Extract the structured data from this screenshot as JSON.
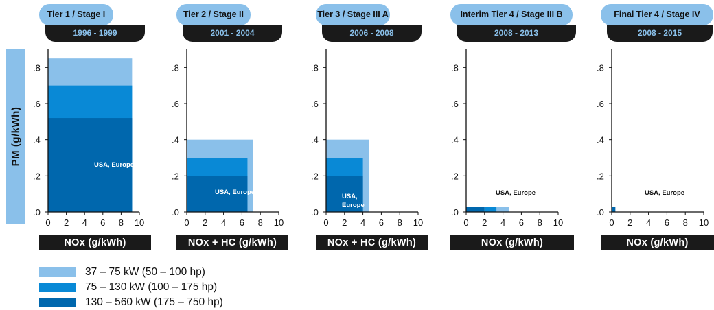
{
  "y_axis_label": "PM (g/kWh)",
  "colors": {
    "light": "#8ac0ea",
    "mid": "#0989d6",
    "dark": "#0067ad",
    "bar": "#1a1a1a"
  },
  "legend": [
    {
      "label": "37 – 75 kW  (50 – 100 hp)",
      "color": "#8ac0ea"
    },
    {
      "label": "75 – 130 kW  (100 – 175 hp)",
      "color": "#0989d6"
    },
    {
      "label": "130 – 560 kW  (175 – 750 hp)",
      "color": "#0067ad"
    }
  ],
  "chart_data": [
    {
      "type": "area",
      "tier": "Tier 1 / Stage I",
      "years": "1996 - 1999",
      "xlabel": "NOx (g/kWh)",
      "region_label": "USA, Europe",
      "xlim": [
        0,
        10
      ],
      "ylim": [
        0,
        0.9
      ],
      "xticks": [
        "0",
        "2",
        "4",
        "6",
        "8",
        "10"
      ],
      "yticks": [
        ".0",
        ".2",
        ".4",
        ".6",
        ".8"
      ],
      "regions": [
        {
          "series": "37 – 75 kW",
          "nox_max": 9.2,
          "pm_max": 0.85
        },
        {
          "series": "75 – 130 kW",
          "nox_max": 9.2,
          "pm_max": 0.7
        },
        {
          "series": "130 – 560 kW",
          "nox_max": 9.2,
          "pm_max": 0.52
        }
      ]
    },
    {
      "type": "area",
      "tier": "Tier 2 / Stage II",
      "years": "2001 - 2004",
      "xlabel": "NOx + HC (g/kWh)",
      "region_label": "USA, Europe",
      "xlim": [
        0,
        10
      ],
      "ylim": [
        0,
        0.9
      ],
      "xticks": [
        "0",
        "2",
        "4",
        "6",
        "8",
        "10"
      ],
      "yticks": [
        ".0",
        ".2",
        ".4",
        ".6",
        ".8"
      ],
      "regions": [
        {
          "series": "37 – 75 kW",
          "nox_max": 7.2,
          "pm_max": 0.4
        },
        {
          "series": "75 – 130 kW",
          "nox_max": 6.6,
          "pm_max": 0.3
        },
        {
          "series": "130 – 560 kW",
          "nox_max": 6.6,
          "pm_max": 0.2
        }
      ]
    },
    {
      "type": "area",
      "tier": "Tier 3 / Stage III A",
      "years": "2006 - 2008",
      "xlabel": "NOx + HC (g/kWh)",
      "region_label": "USA, Europe",
      "xlim": [
        0,
        10
      ],
      "ylim": [
        0,
        0.9
      ],
      "xticks": [
        "0",
        "2",
        "4",
        "6",
        "8",
        "10"
      ],
      "yticks": [
        ".0",
        ".2",
        ".4",
        ".6",
        ".8"
      ],
      "regions": [
        {
          "series": "37 – 75 kW",
          "nox_max": 4.7,
          "pm_max": 0.4
        },
        {
          "series": "75 – 130 kW",
          "nox_max": 4.0,
          "pm_max": 0.3
        },
        {
          "series": "130 – 560 kW",
          "nox_max": 4.0,
          "pm_max": 0.2
        }
      ]
    },
    {
      "type": "area",
      "tier": "Interim Tier 4 / Stage III B",
      "years": "2008 - 2013",
      "xlabel": "NOx (g/kWh)",
      "region_label": "USA, Europe",
      "xlim": [
        0,
        10
      ],
      "ylim": [
        0,
        0.9
      ],
      "xticks": [
        "0",
        "2",
        "4",
        "6",
        "8",
        "10"
      ],
      "yticks": [
        ".0",
        ".2",
        ".4",
        ".6",
        ".8"
      ],
      "regions": [
        {
          "series": "37 – 75 kW",
          "nox_min": 3.3,
          "nox_max": 4.7,
          "pm_max": 0.025
        },
        {
          "series": "75 – 130 kW",
          "nox_min": 2.0,
          "nox_max": 3.3,
          "pm_max": 0.025
        },
        {
          "series": "130 – 560 kW",
          "nox_min": 0,
          "nox_max": 2.0,
          "pm_max": 0.025
        }
      ]
    },
    {
      "type": "area",
      "tier": "Final Tier 4 / Stage IV",
      "years": "2008 - 2015",
      "xlabel": "NOx (g/kWh)",
      "region_label": "USA, Europe",
      "xlim": [
        0,
        10
      ],
      "ylim": [
        0,
        0.9
      ],
      "xticks": [
        "0",
        "2",
        "4",
        "6",
        "8",
        "10"
      ],
      "yticks": [
        ".0",
        ".2",
        ".4",
        ".6",
        ".8"
      ],
      "regions": [
        {
          "series": "130 – 560 kW",
          "nox_min": 0,
          "nox_max": 0.4,
          "pm_max": 0.025
        }
      ]
    }
  ]
}
